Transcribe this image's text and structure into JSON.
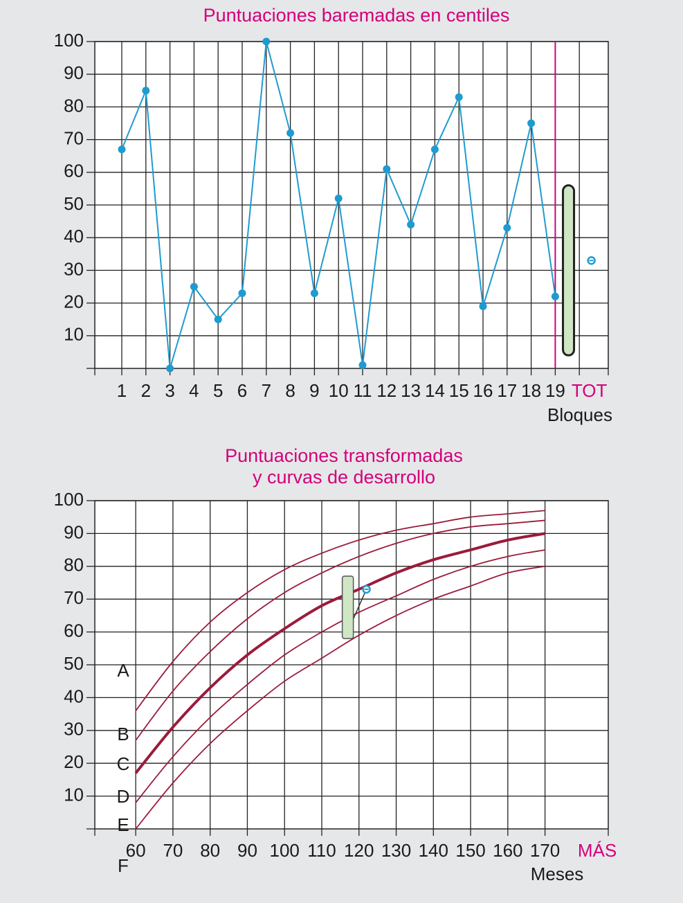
{
  "chart_data": [
    {
      "type": "line",
      "title": "Puntuaciones baremadas en centiles",
      "x_label": "Bloques",
      "categories": [
        "1",
        "2",
        "3",
        "4",
        "5",
        "6",
        "7",
        "8",
        "9",
        "10",
        "11",
        "12",
        "13",
        "14",
        "15",
        "16",
        "17",
        "18",
        "19"
      ],
      "series": [
        {
          "color": "#1e9bd0",
          "values": [
            67,
            85,
            0,
            25,
            15,
            23,
            100,
            72,
            23,
            52,
            1,
            61,
            44,
            67,
            83,
            19,
            43,
            75,
            22
          ]
        }
      ],
      "total": {
        "label": "TOT",
        "value": 33,
        "range": [
          4,
          56
        ],
        "color": "#d4007a",
        "range_color": "#cfe6c4"
      },
      "ylim": [
        0,
        100
      ],
      "yticks": [
        10,
        20,
        30,
        40,
        50,
        60,
        70,
        80,
        90,
        100
      ],
      "grid": true
    },
    {
      "type": "curves",
      "title": [
        "Puntuaciones transformadas",
        "y curvas de desarrollo"
      ],
      "x_label": "Meses",
      "extra_tick_label": "MÁS",
      "x": [
        60,
        70,
        80,
        90,
        100,
        110,
        120,
        130,
        140,
        150,
        160,
        170
      ],
      "xlim": [
        49,
        187
      ],
      "xticks": [
        60,
        70,
        80,
        90,
        100,
        110,
        120,
        130,
        140,
        150,
        160,
        170
      ],
      "ylim": [
        0,
        100
      ],
      "yticks": [
        10,
        20,
        30,
        40,
        50,
        60,
        70,
        80,
        90,
        100
      ],
      "grid": true,
      "series": [
        {
          "color": "#9b1b3a",
          "values": [
            36,
            51,
            63,
            72,
            79,
            84,
            88,
            91,
            93,
            95,
            96,
            97
          ]
        },
        {
          "color": "#9b1b3a",
          "values": [
            27,
            42,
            54,
            64,
            72,
            78,
            83,
            87,
            90,
            92,
            93,
            94
          ]
        },
        {
          "color": "#9b1b3a",
          "bold": true,
          "values": [
            17,
            31,
            43,
            53,
            61,
            68,
            73,
            78,
            82,
            85,
            88,
            90
          ]
        },
        {
          "color": "#9b1b3a",
          "values": [
            8,
            22,
            34,
            44,
            53,
            60,
            66,
            71,
            76,
            80,
            83,
            85
          ]
        },
        {
          "color": "#9b1b3a",
          "values": [
            0,
            14,
            26,
            36,
            45,
            52,
            59,
            65,
            70,
            74,
            78,
            80
          ]
        }
      ],
      "zones": [
        "A",
        "B",
        "C",
        "D",
        "E",
        "F"
      ],
      "point": {
        "x": 122,
        "y": 73,
        "color": "#1e9bd0"
      },
      "range": {
        "x": 117,
        "y": [
          58,
          77
        ],
        "color": "#cfe6c4"
      },
      "title_color": "#d4007a"
    }
  ]
}
